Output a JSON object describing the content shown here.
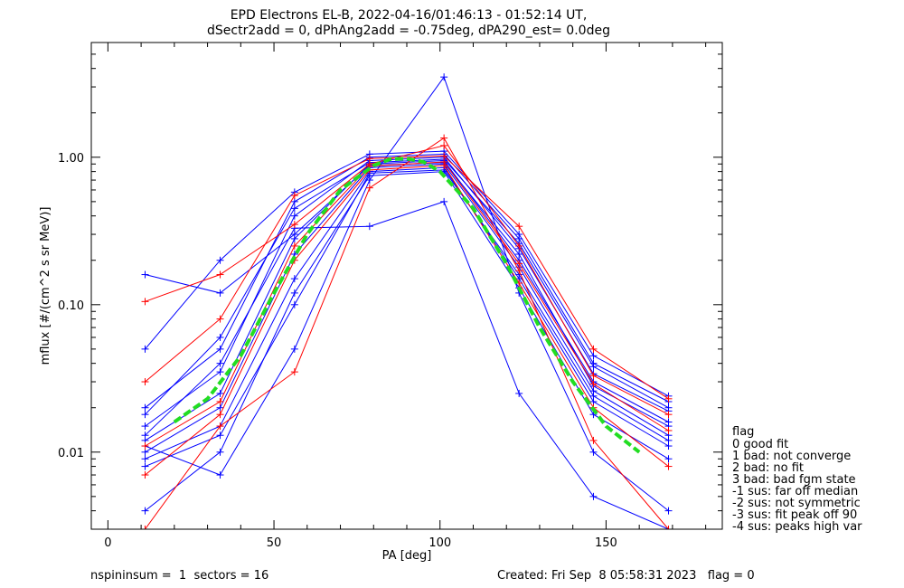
{
  "title_line1": "EPD Electrons EL-B, 2022-04-16/01:46:13 - 01:52:14 UT,",
  "title_line2": "dSectr2add = 0, dPhAng2add = -0.75deg, dPA290_est=   0.0deg",
  "footer": {
    "left": "nspininsum =  1  sectors = 16",
    "right": "Created: Fri Sep  8 05:58:31 2023   flag = 0"
  },
  "legend": {
    "title": "flag",
    "items": [
      " 0 good fit",
      " 1 bad: not converge",
      " 2 bad: no fit",
      " 3 bad: bad fgm state",
      "-1 sus: far off median",
      "-2 sus: not symmetric",
      "-3 sus: fit peak off 90",
      "-4 sus: peaks high var"
    ]
  },
  "colors": {
    "blue": "#0000ff",
    "red": "#ff0000",
    "green": "#22dd22",
    "black": "#000000"
  },
  "chart_data": {
    "type": "line",
    "xlabel": "PA [deg]",
    "ylabel": "mflux [#/(cm^2 s sr MeV)]",
    "xlim": [
      -5,
      185
    ],
    "ylim": [
      0.003,
      6
    ],
    "yscale": "log",
    "xticks": [
      0,
      50,
      100,
      150
    ],
    "yticks": [
      0.01,
      0.1,
      1.0
    ],
    "ytick_labels": [
      "0.01",
      "0.10",
      "1.00"
    ],
    "x": [
      11.2,
      33.8,
      56.2,
      78.8,
      101.2,
      123.8,
      146.2,
      168.8
    ],
    "series": [
      {
        "color": "blue",
        "values": [
          0.012,
          0.025,
          0.28,
          0.9,
          0.95,
          0.2,
          0.03,
          0.016
        ]
      },
      {
        "color": "blue",
        "values": [
          0.01,
          0.02,
          0.22,
          0.85,
          0.9,
          0.18,
          0.026,
          0.013
        ]
      },
      {
        "color": "blue",
        "values": [
          0.015,
          0.035,
          0.4,
          0.95,
          1.0,
          0.24,
          0.034,
          0.019
        ]
      },
      {
        "color": "blue",
        "values": [
          0.009,
          0.015,
          0.15,
          0.8,
          0.85,
          0.15,
          0.022,
          0.011
        ]
      },
      {
        "color": "blue",
        "values": [
          0.02,
          0.05,
          0.5,
          1.0,
          1.05,
          0.28,
          0.04,
          0.022
        ]
      },
      {
        "color": "blue",
        "values": [
          0.16,
          0.12,
          0.3,
          0.88,
          0.92,
          0.22,
          0.028,
          0.015
        ]
      },
      {
        "color": "blue",
        "values": [
          0.004,
          0.01,
          0.12,
          0.75,
          0.8,
          0.13,
          0.018,
          0.009
        ]
      },
      {
        "color": "blue",
        "values": [
          0.05,
          0.2,
          0.58,
          1.05,
          1.1,
          0.3,
          0.045,
          0.024
        ]
      },
      {
        "color": "blue",
        "values": [
          0.013,
          0.04,
          0.33,
          0.34,
          0.5,
          0.025,
          0.005,
          0.003
        ]
      },
      {
        "color": "blue",
        "values": [
          0.011,
          0.007,
          0.05,
          0.7,
          3.5,
          0.12,
          0.01,
          0.004
        ]
      },
      {
        "color": "blue",
        "values": [
          0.018,
          0.06,
          0.45,
          0.92,
          0.97,
          0.26,
          0.038,
          0.02
        ]
      },
      {
        "color": "blue",
        "values": [
          0.008,
          0.013,
          0.1,
          0.78,
          0.82,
          0.16,
          0.024,
          0.012
        ]
      },
      {
        "color": "red",
        "values": [
          0.011,
          0.022,
          0.25,
          0.87,
          0.93,
          0.19,
          0.029,
          0.014
        ]
      },
      {
        "color": "red",
        "values": [
          0.105,
          0.16,
          0.35,
          0.9,
          1.2,
          0.25,
          0.033,
          0.018
        ]
      },
      {
        "color": "red",
        "values": [
          0.003,
          0.015,
          0.035,
          0.62,
          1.35,
          0.17,
          0.012,
          0.003
        ]
      },
      {
        "color": "red",
        "values": [
          0.007,
          0.018,
          0.2,
          0.82,
          0.88,
          0.14,
          0.02,
          0.008
        ]
      },
      {
        "color": "red",
        "values": [
          0.03,
          0.08,
          0.55,
          0.98,
          1.02,
          0.34,
          0.05,
          0.023
        ]
      }
    ],
    "fit": {
      "color": "green",
      "x": [
        20,
        30,
        40,
        50,
        60,
        70,
        80,
        85,
        90,
        95,
        100,
        110,
        120,
        130,
        140,
        150,
        160
      ],
      "y": [
        0.016,
        0.023,
        0.045,
        0.12,
        0.3,
        0.6,
        0.88,
        0.97,
        0.98,
        0.93,
        0.8,
        0.45,
        0.19,
        0.07,
        0.03,
        0.015,
        0.01
      ]
    }
  }
}
